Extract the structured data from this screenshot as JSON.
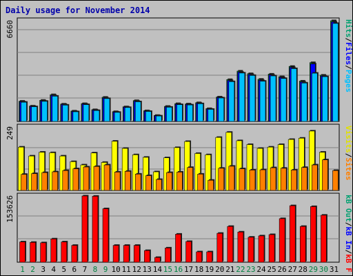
{
  "title": "Daily usage for November 2014",
  "chart_data": [
    {
      "type": "bar",
      "panel": "hits-files-pages",
      "ymax_label": "6660",
      "ylim": [
        0,
        6660
      ],
      "legend": [
        {
          "text": "Pages",
          "color": "#00c0ff"
        },
        {
          "text": "Files",
          "color": "#0000ff"
        },
        {
          "text": "Hits",
          "color": "#00a070"
        }
      ],
      "separator": "/",
      "categories": [
        "1",
        "2",
        "3",
        "4",
        "5",
        "6",
        "7",
        "8",
        "9",
        "10",
        "11",
        "12",
        "13",
        "14",
        "15",
        "16",
        "17",
        "18",
        "19",
        "20",
        "21",
        "22",
        "23",
        "24",
        "25",
        "26",
        "27",
        "28",
        "29",
        "30",
        "31"
      ],
      "series": [
        {
          "name": "Hits",
          "color": "#008040",
          "values": [
            1340,
            1020,
            1400,
            1770,
            1150,
            690,
            1180,
            780,
            1600,
            650,
            970,
            1380,
            710,
            400,
            1000,
            1180,
            1160,
            1240,
            850,
            1620,
            2770,
            3330,
            3160,
            2790,
            3130,
            2960,
            3640,
            2670,
            3890,
            3060,
            6660
          ]
        },
        {
          "name": "Files",
          "color": "#0000ff",
          "values": [
            1300,
            1000,
            1360,
            1720,
            1120,
            660,
            1150,
            750,
            1550,
            620,
            950,
            1340,
            680,
            380,
            960,
            1140,
            1120,
            1200,
            820,
            1580,
            2700,
            3260,
            3100,
            2720,
            3070,
            2900,
            3560,
            2600,
            3800,
            3000,
            6570
          ]
        },
        {
          "name": "Pages",
          "color": "#00c0ff",
          "values": [
            1270,
            970,
            1330,
            1670,
            1080,
            640,
            1110,
            720,
            1510,
            600,
            920,
            1300,
            660,
            360,
            940,
            1110,
            1090,
            1170,
            800,
            1550,
            2630,
            3200,
            3040,
            2660,
            3010,
            2840,
            3490,
            2540,
            3190,
            2960,
            6480
          ]
        }
      ]
    },
    {
      "type": "bar",
      "panel": "visits-sites",
      "ymax_label": "249",
      "ylim": [
        0,
        249
      ],
      "legend": [
        {
          "text": "Sites",
          "color": "#ff8000"
        },
        {
          "text": "Visits",
          "color": "#e0e000"
        }
      ],
      "separator": "/",
      "categories": [
        "1",
        "2",
        "3",
        "4",
        "5",
        "6",
        "7",
        "8",
        "9",
        "10",
        "11",
        "12",
        "13",
        "14",
        "15",
        "16",
        "17",
        "18",
        "19",
        "20",
        "21",
        "22",
        "23",
        "24",
        "25",
        "26",
        "27",
        "28",
        "29",
        "30",
        "31"
      ],
      "series": [
        {
          "name": "Visits",
          "color": "#ffff00",
          "values": [
            170,
            135,
            150,
            148,
            135,
            113,
            100,
            147,
            110,
            193,
            165,
            140,
            130,
            73,
            128,
            168,
            192,
            145,
            140,
            208,
            228,
            195,
            180,
            165,
            170,
            180,
            200,
            205,
            233,
            150,
            0
          ]
        },
        {
          "name": "Sites",
          "color": "#ff8000",
          "values": [
            63,
            66,
            70,
            73,
            78,
            85,
            92,
            94,
            100,
            72,
            75,
            64,
            58,
            43,
            70,
            72,
            90,
            64,
            40,
            87,
            95,
            85,
            80,
            81,
            89,
            87,
            80,
            90,
            100,
            120,
            78
          ]
        }
      ]
    },
    {
      "type": "bar",
      "panel": "kbytes",
      "ymax_label": "153626",
      "ylim": [
        0,
        153626
      ],
      "legend": [
        {
          "text": "KBytes",
          "color": "#ff0000"
        },
        {
          "text": "KB In",
          "color": "#0000ff"
        },
        {
          "text": "KB Out",
          "color": "#00a070"
        }
      ],
      "legend_display": [
        {
          "text": "kB F",
          "color": "#ff0000"
        },
        {
          "text": "kB In",
          "color": "#0000ff"
        },
        {
          "text": "kB Out",
          "color": "#00a070"
        }
      ],
      "separator": "/",
      "categories": [
        "1",
        "2",
        "3",
        "4",
        "5",
        "6",
        "7",
        "8",
        "9",
        "10",
        "11",
        "12",
        "13",
        "14",
        "15",
        "16",
        "17",
        "18",
        "19",
        "20",
        "21",
        "22",
        "23",
        "24",
        "25",
        "26",
        "27",
        "28",
        "29",
        "30",
        "31"
      ],
      "series": [
        {
          "name": "KBytes",
          "color": "#ff0000",
          "values": [
            47000,
            46000,
            45000,
            54000,
            47000,
            39000,
            153626,
            153000,
            124000,
            39000,
            39000,
            39000,
            27000,
            11000,
            33000,
            65000,
            48000,
            24000,
            24000,
            67000,
            83000,
            70000,
            58000,
            61000,
            64000,
            101000,
            131000,
            83000,
            129000,
            109000,
            0
          ]
        }
      ]
    }
  ],
  "x_labels": [
    {
      "text": "1",
      "color": "#008040"
    },
    {
      "text": "2",
      "color": "#008040"
    },
    {
      "text": "3",
      "color": "#000000"
    },
    {
      "text": "4",
      "color": "#000000"
    },
    {
      "text": "5",
      "color": "#000000"
    },
    {
      "text": "6",
      "color": "#000000"
    },
    {
      "text": "7",
      "color": "#000000"
    },
    {
      "text": "8",
      "color": "#008040"
    },
    {
      "text": "9",
      "color": "#008040"
    },
    {
      "text": "10",
      "color": "#000000"
    },
    {
      "text": "11",
      "color": "#000000"
    },
    {
      "text": "12",
      "color": "#000000"
    },
    {
      "text": "13",
      "color": "#000000"
    },
    {
      "text": "14",
      "color": "#000000"
    },
    {
      "text": "15",
      "color": "#008040"
    },
    {
      "text": "16",
      "color": "#008040"
    },
    {
      "text": "17",
      "color": "#000000"
    },
    {
      "text": "18",
      "color": "#000000"
    },
    {
      "text": "19",
      "color": "#000000"
    },
    {
      "text": "20",
      "color": "#000000"
    },
    {
      "text": "21",
      "color": "#000000"
    },
    {
      "text": "22",
      "color": "#008040"
    },
    {
      "text": "23",
      "color": "#008040"
    },
    {
      "text": "24",
      "color": "#000000"
    },
    {
      "text": "25",
      "color": "#000000"
    },
    {
      "text": "26",
      "color": "#000000"
    },
    {
      "text": "27",
      "color": "#000000"
    },
    {
      "text": "28",
      "color": "#000000"
    },
    {
      "text": "29",
      "color": "#008040"
    },
    {
      "text": "30",
      "color": "#008040"
    },
    {
      "text": "31",
      "color": "#000000"
    }
  ]
}
